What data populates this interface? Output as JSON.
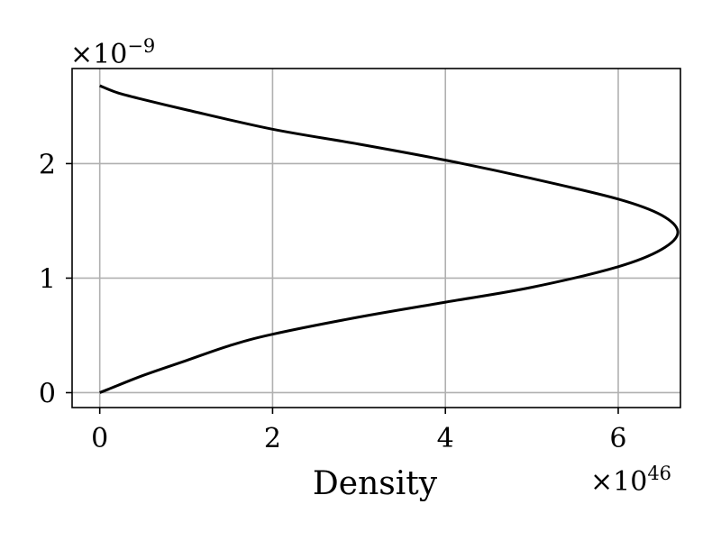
{
  "chart_data": {
    "type": "line",
    "title": "",
    "xlabel": "Density",
    "ylabel": "",
    "x_offset": {
      "base": "×10",
      "exponent": "46"
    },
    "y_offset": {
      "base": "×10",
      "exponent": "−9"
    },
    "xlim": [
      -0.32,
      6.72
    ],
    "ylim": [
      -0.13,
      2.83
    ],
    "x_ticks": [
      0,
      2,
      4,
      6
    ],
    "y_ticks": [
      0,
      1,
      2
    ],
    "grid": true,
    "legend": "none",
    "colors": {
      "line": "#000000",
      "grid": "#b0b0b0",
      "axes": "#000000"
    },
    "series": [
      {
        "points": [
          [
            0.0,
            0.0
          ],
          [
            0.1,
            0.03
          ],
          [
            0.5,
            0.15
          ],
          [
            1.0,
            0.28
          ],
          [
            1.5,
            0.41
          ],
          [
            2.0,
            0.51
          ],
          [
            3.0,
            0.66
          ],
          [
            4.0,
            0.79
          ],
          [
            5.0,
            0.92
          ],
          [
            6.0,
            1.1
          ],
          [
            6.5,
            1.25
          ],
          [
            6.69,
            1.4
          ],
          [
            6.5,
            1.55
          ],
          [
            6.0,
            1.69
          ],
          [
            5.0,
            1.87
          ],
          [
            4.0,
            2.03
          ],
          [
            3.0,
            2.17
          ],
          [
            2.0,
            2.3
          ],
          [
            1.0,
            2.47
          ],
          [
            0.5,
            2.56
          ],
          [
            0.2,
            2.62
          ],
          [
            0.0,
            2.68
          ]
        ]
      }
    ]
  }
}
